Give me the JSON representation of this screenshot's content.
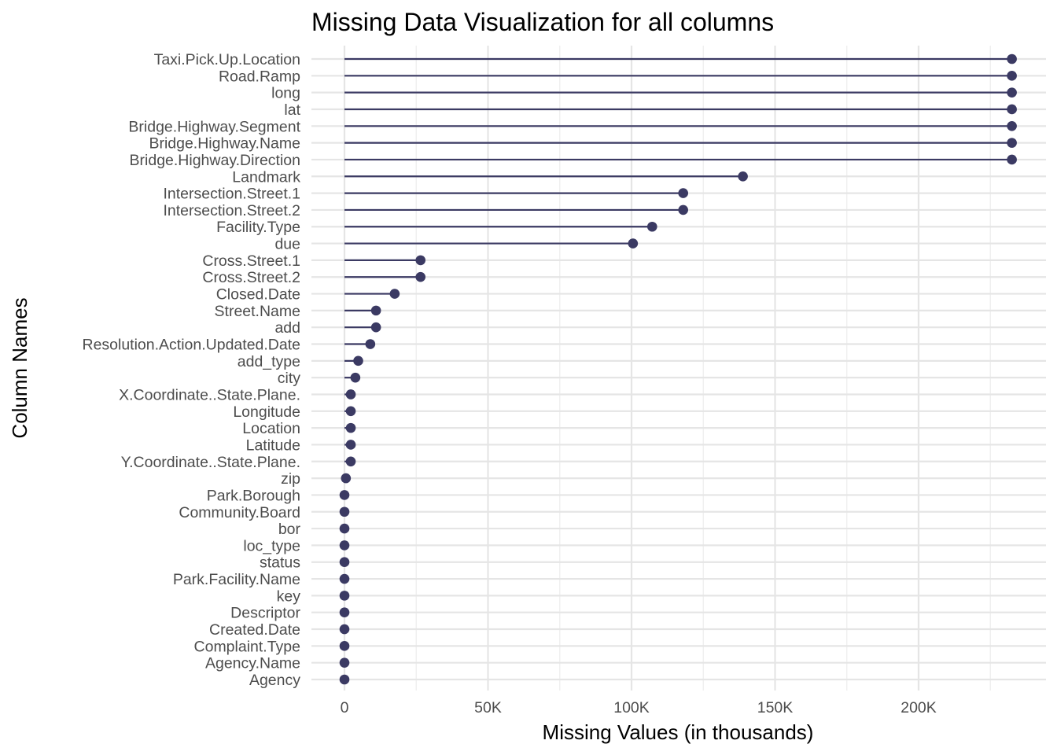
{
  "chart_data": {
    "type": "lollipop",
    "title": "Missing Data Visualization for all columns",
    "xlabel": "Missing Values (in thousands)",
    "ylabel": "Column Names",
    "xlim": [
      -11500,
      243500
    ],
    "x_ticks": [
      0,
      50000,
      100000,
      150000,
      200000
    ],
    "x_tick_labels": [
      "0",
      "50K",
      "100K",
      "150K",
      "200K"
    ],
    "grid": true,
    "colors": {
      "series": "#3b3a63",
      "grid": "#e5e5e5"
    },
    "categories": [
      "Taxi.Pick.Up.Location",
      "Road.Ramp",
      "long",
      "lat",
      "Bridge.Highway.Segment",
      "Bridge.Highway.Name",
      "Bridge.Highway.Direction",
      "Landmark",
      "Intersection.Street.1",
      "Intersection.Street.2",
      "Facility.Type",
      "due",
      "Cross.Street.1",
      "Cross.Street.2",
      "Closed.Date",
      "Street.Name",
      "add",
      "Resolution.Action.Updated.Date",
      "add_type",
      "city",
      "X.Coordinate..State.Plane.",
      "Longitude",
      "Location",
      "Latitude",
      "Y.Coordinate..State.Plane.",
      "zip",
      "Park.Borough",
      "Community.Board",
      "bor",
      "loc_type",
      "status",
      "Park.Facility.Name",
      "key",
      "Descriptor",
      "Created.Date",
      "Complaint.Type",
      "Agency.Name",
      "Agency"
    ],
    "values": [
      232500,
      232500,
      232500,
      232500,
      232500,
      232500,
      232500,
      138800,
      118000,
      118000,
      107200,
      100500,
      26500,
      26500,
      17500,
      11000,
      11000,
      9000,
      4800,
      3800,
      2200,
      2200,
      2200,
      2200,
      2200,
      500,
      0,
      0,
      0,
      0,
      0,
      0,
      0,
      0,
      0,
      0,
      0,
      0
    ]
  }
}
